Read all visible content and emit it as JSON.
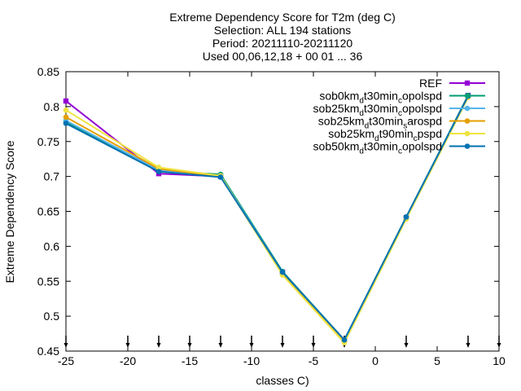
{
  "chart_data": {
    "type": "line",
    "title_lines": [
      "Extreme Dependency Score  for T2m (deg C)",
      "Selection: ALL    194 stations",
      "Period: 20211110-20211120",
      "Used 00,06,12,18 + 00 01 ... 36"
    ],
    "xlabel": "classes C)",
    "ylabel": "Extreme Dependency Score",
    "xlim": [
      -25,
      10
    ],
    "ylim": [
      0.45,
      0.85
    ],
    "xticks": [
      -25,
      -20,
      -15,
      -10,
      -5,
      0,
      5,
      10
    ],
    "yticks": [
      0.45,
      0.5,
      0.55,
      0.6,
      0.65,
      0.7,
      0.75,
      0.8,
      0.85
    ],
    "xtick_labels": [
      "-25",
      "-20",
      "-15",
      "-10",
      "-5",
      "0",
      "5",
      "10"
    ],
    "ytick_labels": [
      "0.45",
      "0.5",
      "0.55",
      "0.6",
      "0.65",
      "0.7",
      "0.75",
      "0.8",
      "0.85"
    ],
    "grid": false,
    "legend_position": "top-right",
    "bottom_arrow_x": [
      -25,
      -20,
      -17.5,
      -15,
      -12.5,
      -10,
      -7.5,
      -5,
      -2.5,
      2.5,
      7.5,
      10
    ],
    "series": [
      {
        "name": "REF",
        "name_parts": [
          {
            "t": "REF",
            "s": "n"
          }
        ],
        "color": "#9400d3",
        "marker": "square",
        "x": [
          -25,
          -17.5,
          -12.5,
          -7.5,
          -2.5,
          2.5,
          7.5
        ],
        "y": [
          0.808,
          0.704,
          0.7,
          0.563,
          0.466,
          0.641,
          0.816
        ]
      },
      {
        "name": "sob0kmdt30mincopolspd",
        "name_parts": [
          {
            "t": "sob0km",
            "s": "n"
          },
          {
            "t": "d",
            "s": "sub"
          },
          {
            "t": "t30min",
            "s": "n"
          },
          {
            "t": "c",
            "s": "sub"
          },
          {
            "t": "opolspd",
            "s": "n"
          }
        ],
        "color": "#009e73",
        "marker": "circle",
        "x": [
          -25,
          -17.5,
          -12.5,
          -7.5,
          -2.5,
          2.5,
          7.5
        ],
        "y": [
          0.778,
          0.708,
          0.703,
          0.564,
          0.466,
          0.642,
          0.816
        ]
      },
      {
        "name": "sob25kmdt30mincopolspd",
        "name_parts": [
          {
            "t": "sob25km",
            "s": "n"
          },
          {
            "t": "d",
            "s": "sub"
          },
          {
            "t": "t30min",
            "s": "n"
          },
          {
            "t": "c",
            "s": "sub"
          },
          {
            "t": "opolspd",
            "s": "n"
          }
        ],
        "color": "#56b4e9",
        "marker": "circle",
        "x": [
          -25,
          -17.5,
          -12.5,
          -7.5,
          -2.5,
          2.5,
          7.5
        ],
        "y": [
          0.78,
          0.709,
          0.701,
          0.563,
          0.466,
          0.641,
          0.815
        ]
      },
      {
        "name": "sob25kmdt30minsarospd",
        "name_parts": [
          {
            "t": "sob25km",
            "s": "n"
          },
          {
            "t": "d",
            "s": "sub"
          },
          {
            "t": "t30min",
            "s": "n"
          },
          {
            "t": "s",
            "s": "sub"
          },
          {
            "t": "arospd",
            "s": "n"
          }
        ],
        "color": "#e69f00",
        "marker": "circle",
        "x": [
          -25,
          -17.5,
          -12.5,
          -7.5,
          -2.5,
          2.5,
          7.5
        ],
        "y": [
          0.785,
          0.711,
          0.7,
          0.56,
          0.464,
          0.64,
          0.815
        ]
      },
      {
        "name": "sob25kmdt90mincpspd",
        "name_parts": [
          {
            "t": "sob25km",
            "s": "n"
          },
          {
            "t": "d",
            "s": "sub"
          },
          {
            "t": "t90min",
            "s": "n"
          },
          {
            "t": "c",
            "s": "sub"
          },
          {
            "t": "pspd",
            "s": "n"
          }
        ],
        "color": "#f0e442",
        "marker": "circle",
        "x": [
          -25,
          -17.5,
          -12.5,
          -7.5,
          -2.5,
          2.5,
          7.5
        ],
        "y": [
          0.795,
          0.713,
          0.701,
          0.559,
          0.462,
          0.639,
          0.813
        ]
      },
      {
        "name": "sob50kmdt30mincopolspd",
        "name_parts": [
          {
            "t": "sob50km",
            "s": "n"
          },
          {
            "t": "d",
            "s": "sub"
          },
          {
            "t": "t30min",
            "s": "n"
          },
          {
            "t": "c",
            "s": "sub"
          },
          {
            "t": "opolspd",
            "s": "n"
          }
        ],
        "color": "#0072b2",
        "marker": "circle",
        "x": [
          -25,
          -17.5,
          -12.5,
          -7.5,
          -2.5,
          2.5,
          7.5
        ],
        "y": [
          0.776,
          0.707,
          0.699,
          0.563,
          0.466,
          0.642,
          0.815
        ]
      }
    ]
  }
}
